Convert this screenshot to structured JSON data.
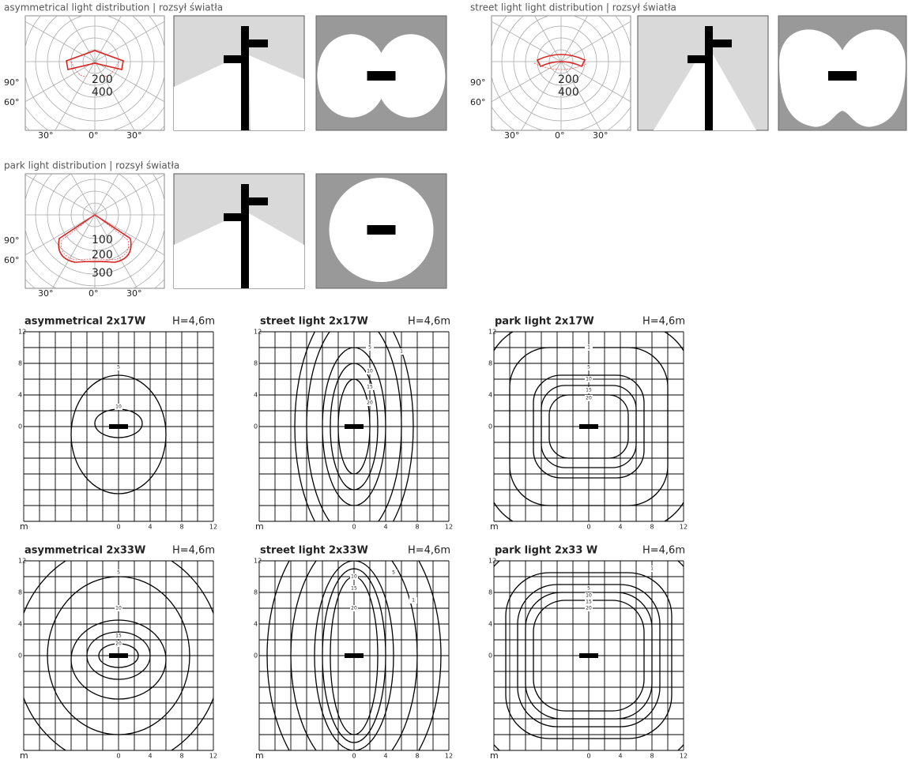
{
  "distributions": [
    {
      "title": "asymmetrical light distribution | rozsył światła",
      "angle_labels": [
        "90°",
        "60°",
        "30°",
        "0°",
        "30°"
      ],
      "radial_labels": [
        "200",
        "400"
      ]
    },
    {
      "title": "street light light distribution | rozsył światła",
      "angle_labels": [
        "90°",
        "60°",
        "30°",
        "0°",
        "30°"
      ],
      "radial_labels": [
        "200",
        "400"
      ]
    },
    {
      "title": "park light distribution | rozsył światła",
      "angle_labels": [
        "90°",
        "60°",
        "30°",
        "0°",
        "30°"
      ],
      "radial_labels": [
        "100",
        "200",
        "300"
      ]
    }
  ],
  "isolux": [
    {
      "title": "asymmetrical 2x17W",
      "height": "H=4,6m",
      "y_labels": [
        "12",
        "8",
        "4",
        "0"
      ],
      "x_labels": [
        "m",
        "0",
        "4",
        "8",
        "12"
      ],
      "contour_labels": [
        "5",
        "10"
      ]
    },
    {
      "title": "street light 2x17W",
      "height": "H=4,6m",
      "y_labels": [
        "12",
        "8",
        "4",
        "0"
      ],
      "x_labels": [
        "m",
        "0",
        "4",
        "8",
        "12"
      ],
      "contour_labels": [
        "5",
        "1",
        "10",
        "15",
        "20"
      ]
    },
    {
      "title": "park light 2x17W",
      "height": "H=4,6m",
      "y_labels": [
        "12",
        "8",
        "4",
        "0"
      ],
      "x_labels": [
        "m",
        "0",
        "4",
        "8",
        "12"
      ],
      "contour_labels": [
        "1",
        "5",
        "10",
        "15",
        "20"
      ]
    },
    {
      "title": "asymmetrical 2x33W",
      "height": "H=4,6m",
      "y_labels": [
        "12",
        "8",
        "4",
        "0"
      ],
      "x_labels": [
        "m",
        "0",
        "4",
        "8",
        "12"
      ],
      "contour_labels": [
        "5",
        "10",
        "15",
        "20"
      ]
    },
    {
      "title": "street light 2x33W",
      "height": "H=4,6m",
      "y_labels": [
        "12",
        "8",
        "4",
        "0"
      ],
      "x_labels": [
        "m",
        "0",
        "4",
        "8",
        "12"
      ],
      "contour_labels": [
        "10",
        "5",
        "15",
        "1",
        "20"
      ]
    },
    {
      "title": "park light 2x33 W",
      "height": "H=4,6m",
      "y_labels": [
        "12",
        "8",
        "4",
        "0"
      ],
      "x_labels": [
        "m",
        "0",
        "4",
        "8",
        "12"
      ],
      "contour_labels": [
        "5",
        "1",
        "10",
        "15",
        "20"
      ]
    }
  ]
}
